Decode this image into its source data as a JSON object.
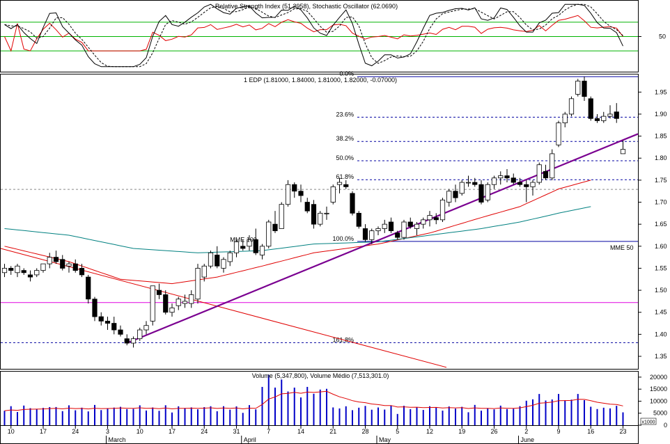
{
  "chart_data": {
    "type": "candlestick",
    "panels": {
      "oscillator": {
        "title": "Relative Strength Index (51.2958), Stochastic Oscillator (62.0690)",
        "yticks": [
          {
            "v": 50,
            "label": "50"
          }
        ],
        "levels": [
          30,
          50,
          70
        ],
        "ylim": [
          0,
          100
        ]
      },
      "price": {
        "title": "1 EDP (1.81000, 1.84000, 1.81000, 1.82000, -0.07000)",
        "ylim": [
          1.32,
          1.99
        ],
        "yticks": [
          {
            "v": 1.95,
            "label": "1.95"
          },
          {
            "v": 1.9,
            "label": "1.90"
          },
          {
            "v": 1.85,
            "label": "1.85"
          },
          {
            "v": 1.8,
            "label": "1.80"
          },
          {
            "v": 1.75,
            "label": "1.75"
          },
          {
            "v": 1.7,
            "label": "1.70"
          },
          {
            "v": 1.65,
            "label": "1.65"
          },
          {
            "v": 1.6,
            "label": "1.60"
          },
          {
            "v": 1.55,
            "label": "1.55"
          },
          {
            "v": 1.5,
            "label": "1.50"
          },
          {
            "v": 1.45,
            "label": "1.45"
          },
          {
            "v": 1.4,
            "label": "1.40"
          },
          {
            "v": 1.35,
            "label": "1.35"
          }
        ],
        "fib_levels": [
          {
            "label": "0.0%",
            "v": 1.985
          },
          {
            "label": "23.6%",
            "v": 1.893
          },
          {
            "label": "38.2%",
            "v": 1.838
          },
          {
            "label": "50.0%",
            "v": 1.794
          },
          {
            "label": "61.8%",
            "v": 1.751
          },
          {
            "label": "100.0%",
            "v": 1.611
          },
          {
            "label": "161.8%",
            "v": 1.381
          }
        ],
        "magenta_line": 1.472,
        "dashed_gray_line": 1.729,
        "annotations": [
          {
            "text": "MME 100",
            "x": 35,
            "y": 1.61
          },
          {
            "text": "MME 50",
            "x": 94,
            "y": 1.592
          }
        ],
        "candles": [
          {
            "o": 1.54,
            "h": 1.56,
            "l": 1.53,
            "c": 1.55
          },
          {
            "o": 1.55,
            "h": 1.555,
            "l": 1.535,
            "c": 1.545
          },
          {
            "o": 1.54,
            "h": 1.56,
            "l": 1.53,
            "c": 1.555
          },
          {
            "o": 1.545,
            "h": 1.55,
            "l": 1.535,
            "c": 1.54
          },
          {
            "o": 1.535,
            "h": 1.545,
            "l": 1.52,
            "c": 1.53
          },
          {
            "o": 1.535,
            "h": 1.55,
            "l": 1.53,
            "c": 1.545
          },
          {
            "o": 1.545,
            "h": 1.56,
            "l": 1.54,
            "c": 1.56
          },
          {
            "o": 1.56,
            "h": 1.585,
            "l": 1.55,
            "c": 1.575
          },
          {
            "o": 1.575,
            "h": 1.59,
            "l": 1.56,
            "c": 1.565
          },
          {
            "o": 1.57,
            "h": 1.58,
            "l": 1.545,
            "c": 1.55
          },
          {
            "o": 1.555,
            "h": 1.565,
            "l": 1.54,
            "c": 1.56
          },
          {
            "o": 1.56,
            "h": 1.57,
            "l": 1.54,
            "c": 1.545
          },
          {
            "o": 1.55,
            "h": 1.56,
            "l": 1.53,
            "c": 1.535
          },
          {
            "o": 1.53,
            "h": 1.535,
            "l": 1.47,
            "c": 1.48
          },
          {
            "o": 1.48,
            "h": 1.485,
            "l": 1.43,
            "c": 1.44
          },
          {
            "o": 1.44,
            "h": 1.45,
            "l": 1.42,
            "c": 1.43
          },
          {
            "o": 1.43,
            "h": 1.44,
            "l": 1.41,
            "c": 1.425
          },
          {
            "o": 1.425,
            "h": 1.44,
            "l": 1.4,
            "c": 1.41
          },
          {
            "o": 1.41,
            "h": 1.42,
            "l": 1.395,
            "c": 1.4
          },
          {
            "o": 1.39,
            "h": 1.4,
            "l": 1.375,
            "c": 1.38
          },
          {
            "o": 1.38,
            "h": 1.395,
            "l": 1.37,
            "c": 1.39
          },
          {
            "o": 1.39,
            "h": 1.415,
            "l": 1.385,
            "c": 1.41
          },
          {
            "o": 1.41,
            "h": 1.43,
            "l": 1.4,
            "c": 1.42
          },
          {
            "o": 1.43,
            "h": 1.51,
            "l": 1.42,
            "c": 1.51
          },
          {
            "o": 1.5,
            "h": 1.515,
            "l": 1.48,
            "c": 1.49
          },
          {
            "o": 1.49,
            "h": 1.5,
            "l": 1.445,
            "c": 1.45
          },
          {
            "o": 1.45,
            "h": 1.47,
            "l": 1.44,
            "c": 1.46
          },
          {
            "o": 1.465,
            "h": 1.485,
            "l": 1.455,
            "c": 1.48
          },
          {
            "o": 1.47,
            "h": 1.49,
            "l": 1.46,
            "c": 1.475
          },
          {
            "o": 1.47,
            "h": 1.5,
            "l": 1.46,
            "c": 1.49
          },
          {
            "o": 1.48,
            "h": 1.56,
            "l": 1.47,
            "c": 1.55
          },
          {
            "o": 1.53,
            "h": 1.56,
            "l": 1.52,
            "c": 1.555
          },
          {
            "o": 1.555,
            "h": 1.59,
            "l": 1.55,
            "c": 1.585
          },
          {
            "o": 1.58,
            "h": 1.6,
            "l": 1.55,
            "c": 1.555
          },
          {
            "o": 1.55,
            "h": 1.575,
            "l": 1.54,
            "c": 1.57
          },
          {
            "o": 1.565,
            "h": 1.59,
            "l": 1.555,
            "c": 1.585
          },
          {
            "o": 1.585,
            "h": 1.615,
            "l": 1.575,
            "c": 1.61
          },
          {
            "o": 1.6,
            "h": 1.615,
            "l": 1.59,
            "c": 1.595
          },
          {
            "o": 1.6,
            "h": 1.625,
            "l": 1.59,
            "c": 1.615
          },
          {
            "o": 1.615,
            "h": 1.64,
            "l": 1.58,
            "c": 1.585
          },
          {
            "o": 1.58,
            "h": 1.605,
            "l": 1.57,
            "c": 1.6
          },
          {
            "o": 1.6,
            "h": 1.66,
            "l": 1.595,
            "c": 1.655
          },
          {
            "o": 1.65,
            "h": 1.68,
            "l": 1.63,
            "c": 1.635
          },
          {
            "o": 1.64,
            "h": 1.7,
            "l": 1.64,
            "c": 1.695
          },
          {
            "o": 1.695,
            "h": 1.75,
            "l": 1.69,
            "c": 1.74
          },
          {
            "o": 1.74,
            "h": 1.745,
            "l": 1.71,
            "c": 1.725
          },
          {
            "o": 1.725,
            "h": 1.74,
            "l": 1.7,
            "c": 1.715
          },
          {
            "o": 1.7,
            "h": 1.71,
            "l": 1.675,
            "c": 1.68
          },
          {
            "o": 1.695,
            "h": 1.705,
            "l": 1.64,
            "c": 1.65
          },
          {
            "o": 1.65,
            "h": 1.68,
            "l": 1.645,
            "c": 1.675
          },
          {
            "o": 1.675,
            "h": 1.69,
            "l": 1.66,
            "c": 1.675
          },
          {
            "o": 1.7,
            "h": 1.74,
            "l": 1.695,
            "c": 1.735
          },
          {
            "o": 1.74,
            "h": 1.755,
            "l": 1.72,
            "c": 1.745
          },
          {
            "o": 1.74,
            "h": 1.75,
            "l": 1.73,
            "c": 1.735
          },
          {
            "o": 1.72,
            "h": 1.725,
            "l": 1.67,
            "c": 1.675
          },
          {
            "o": 1.675,
            "h": 1.68,
            "l": 1.64,
            "c": 1.645
          },
          {
            "o": 1.64,
            "h": 1.65,
            "l": 1.61,
            "c": 1.615
          },
          {
            "o": 1.615,
            "h": 1.64,
            "l": 1.605,
            "c": 1.635
          },
          {
            "o": 1.635,
            "h": 1.645,
            "l": 1.625,
            "c": 1.64
          },
          {
            "o": 1.64,
            "h": 1.66,
            "l": 1.63,
            "c": 1.65
          },
          {
            "o": 1.655,
            "h": 1.665,
            "l": 1.63,
            "c": 1.635
          },
          {
            "o": 1.63,
            "h": 1.635,
            "l": 1.615,
            "c": 1.62
          },
          {
            "o": 1.62,
            "h": 1.66,
            "l": 1.615,
            "c": 1.655
          },
          {
            "o": 1.655,
            "h": 1.665,
            "l": 1.64,
            "c": 1.645
          },
          {
            "o": 1.64,
            "h": 1.655,
            "l": 1.625,
            "c": 1.65
          },
          {
            "o": 1.65,
            "h": 1.665,
            "l": 1.64,
            "c": 1.66
          },
          {
            "o": 1.66,
            "h": 1.68,
            "l": 1.645,
            "c": 1.67
          },
          {
            "o": 1.665,
            "h": 1.675,
            "l": 1.65,
            "c": 1.66
          },
          {
            "o": 1.66,
            "h": 1.71,
            "l": 1.655,
            "c": 1.705
          },
          {
            "o": 1.7,
            "h": 1.73,
            "l": 1.69,
            "c": 1.725
          },
          {
            "o": 1.725,
            "h": 1.74,
            "l": 1.7,
            "c": 1.71
          },
          {
            "o": 1.72,
            "h": 1.75,
            "l": 1.715,
            "c": 1.745
          },
          {
            "o": 1.745,
            "h": 1.76,
            "l": 1.735,
            "c": 1.745
          },
          {
            "o": 1.745,
            "h": 1.755,
            "l": 1.735,
            "c": 1.74
          },
          {
            "o": 1.74,
            "h": 1.75,
            "l": 1.695,
            "c": 1.7
          },
          {
            "o": 1.705,
            "h": 1.745,
            "l": 1.7,
            "c": 1.74
          },
          {
            "o": 1.74,
            "h": 1.76,
            "l": 1.73,
            "c": 1.755
          },
          {
            "o": 1.755,
            "h": 1.77,
            "l": 1.74,
            "c": 1.76
          },
          {
            "o": 1.76,
            "h": 1.775,
            "l": 1.745,
            "c": 1.755
          },
          {
            "o": 1.755,
            "h": 1.765,
            "l": 1.74,
            "c": 1.745
          },
          {
            "o": 1.745,
            "h": 1.755,
            "l": 1.735,
            "c": 1.74
          },
          {
            "o": 1.74,
            "h": 1.75,
            "l": 1.7,
            "c": 1.735
          },
          {
            "o": 1.735,
            "h": 1.75,
            "l": 1.715,
            "c": 1.745
          },
          {
            "o": 1.745,
            "h": 1.79,
            "l": 1.74,
            "c": 1.785
          },
          {
            "o": 1.77,
            "h": 1.785,
            "l": 1.75,
            "c": 1.755
          },
          {
            "o": 1.755,
            "h": 1.82,
            "l": 1.75,
            "c": 1.81
          },
          {
            "o": 1.83,
            "h": 1.885,
            "l": 1.825,
            "c": 1.88
          },
          {
            "o": 1.88,
            "h": 1.905,
            "l": 1.87,
            "c": 1.9
          },
          {
            "o": 1.9,
            "h": 1.94,
            "l": 1.895,
            "c": 1.935
          },
          {
            "o": 1.945,
            "h": 1.98,
            "l": 1.94,
            "c": 1.975
          },
          {
            "o": 1.975,
            "h": 1.985,
            "l": 1.93,
            "c": 1.94
          },
          {
            "o": 1.935,
            "h": 1.94,
            "l": 1.885,
            "c": 1.89
          },
          {
            "o": 1.89,
            "h": 1.9,
            "l": 1.88,
            "c": 1.885
          },
          {
            "o": 1.885,
            "h": 1.905,
            "l": 1.88,
            "c": 1.895
          },
          {
            "o": 1.895,
            "h": 1.92,
            "l": 1.89,
            "c": 1.9
          },
          {
            "o": 1.905,
            "h": 1.925,
            "l": 1.88,
            "c": 1.89
          },
          {
            "o": 1.81,
            "h": 1.84,
            "l": 1.81,
            "c": 1.82
          }
        ]
      },
      "volume": {
        "title": "Volume (5,347,800), Volume Médio (7,513,301.0)",
        "ylim": [
          0,
          22000
        ],
        "yticks": [
          {
            "v": 20000,
            "label": "20000"
          },
          {
            "v": 15000,
            "label": "15000"
          },
          {
            "v": 10000,
            "label": "10000"
          },
          {
            "v": 5000,
            "label": "5000"
          },
          {
            "v": 0,
            "label": "0"
          }
        ],
        "unit_label": "x1000"
      }
    },
    "x_axis": {
      "ticks": [
        {
          "i": 1,
          "label": "10"
        },
        {
          "i": 6,
          "label": "17"
        },
        {
          "i": 11,
          "label": "24"
        },
        {
          "i": 16,
          "label": "3"
        },
        {
          "i": 21,
          "label": "10"
        },
        {
          "i": 26,
          "label": "17"
        },
        {
          "i": 31,
          "label": "24"
        },
        {
          "i": 36,
          "label": "31"
        },
        {
          "i": 41,
          "label": "7"
        },
        {
          "i": 46,
          "label": "14"
        },
        {
          "i": 51,
          "label": "21"
        },
        {
          "i": 56,
          "label": "28"
        },
        {
          "i": 61,
          "label": "5"
        },
        {
          "i": 66,
          "label": "12"
        },
        {
          "i": 71,
          "label": "19"
        },
        {
          "i": 76,
          "label": "26"
        },
        {
          "i": 81,
          "label": "2"
        },
        {
          "i": 86,
          "label": "9"
        },
        {
          "i": 91,
          "label": "16"
        },
        {
          "i": 96,
          "label": "23"
        }
      ],
      "months": [
        {
          "i": 16,
          "label": "March"
        },
        {
          "i": 37,
          "label": "April"
        },
        {
          "i": 58,
          "label": "May"
        },
        {
          "i": 80,
          "label": "June"
        }
      ]
    }
  }
}
